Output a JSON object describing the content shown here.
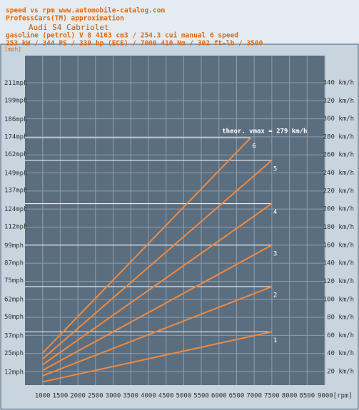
{
  "chart_data": {
    "type": "line",
    "header": [
      "speed vs rpm www.automobile-catalog.com",
      "ProfessCars(TM) approximation"
    ],
    "title": "Audi S4 Cabriolet",
    "subtitle": [
      "gasoline (petrol) V 8 4163 cm3 / 254.3 cui manual 6 speed",
      "253 kW / 344 PS / 339 hp  (ECE) / 7000 410 Nm / 302 ft-lb / 3500"
    ],
    "y_label": "[mph]",
    "annotation": "theor. vmax = 279 km/h",
    "xlim": [
      500,
      9000
    ],
    "xticks": [
      1000,
      1500,
      2000,
      2500,
      3000,
      3500,
      4000,
      4500,
      5000,
      5500,
      6000,
      6500,
      7000,
      7500,
      8000,
      8500,
      {
        "value": 9000,
        "label": "9000[rpm]"
      }
    ],
    "ylim": [
      3.1,
      229.9
    ],
    "yticks": [
      {
        "value": 12,
        "label": "12mph"
      },
      {
        "value": 25,
        "label": "25mph"
      },
      {
        "value": 37,
        "label": "37mph"
      },
      {
        "value": 50,
        "label": "50mph"
      },
      {
        "value": 62,
        "label": "62mph"
      },
      {
        "value": 75,
        "label": "75mph"
      },
      {
        "value": 87,
        "label": "87mph"
      },
      {
        "value": 99,
        "label": "99mph"
      },
      {
        "value": 112,
        "label": "112mph"
      },
      {
        "value": 124,
        "label": "124mph"
      },
      {
        "value": 137,
        "label": "137mph"
      },
      {
        "value": 149,
        "label": "149mph"
      },
      {
        "value": 162,
        "label": "162mph"
      },
      {
        "value": 174,
        "label": "174mph"
      },
      {
        "value": 186,
        "label": "186mph"
      },
      {
        "value": 199,
        "label": "199mph"
      },
      {
        "value": 211,
        "label": "211mph"
      }
    ],
    "y2lim": [
      5,
      370
    ],
    "y2ticks": [
      {
        "value": 20,
        "label": "20 km/h"
      },
      {
        "value": 40,
        "label": "40 km/h"
      },
      {
        "value": 60,
        "label": "60 km/h"
      },
      {
        "value": 80,
        "label": "80 km/h"
      },
      {
        "value": 100,
        "label": "100 km/h"
      },
      {
        "value": 120,
        "label": "120 km/h"
      },
      {
        "value": 140,
        "label": "140 km/h"
      },
      {
        "value": 160,
        "label": "160 km/h"
      },
      {
        "value": 180,
        "label": "180 km/h"
      },
      {
        "value": 200,
        "label": "200 km/h"
      },
      {
        "value": 220,
        "label": "220 km/h"
      },
      {
        "value": 240,
        "label": "240 km/h"
      },
      {
        "value": 260,
        "label": "260 km/h"
      },
      {
        "value": 280,
        "label": "280 km/h"
      },
      {
        "value": 300,
        "label": "300 km/h"
      },
      {
        "value": 320,
        "label": "320 km/h"
      },
      {
        "value": 340,
        "label": "340 km/h"
      }
    ],
    "grid": true,
    "series": [
      {
        "name": "1",
        "color": "#f08a40",
        "axis": "y2",
        "x": [
          1000,
          7500
        ],
        "values": [
          8.5,
          64
        ]
      },
      {
        "name": "2",
        "color": "#f08a40",
        "axis": "y2",
        "x": [
          1000,
          7500
        ],
        "values": [
          15.2,
          114
        ]
      },
      {
        "name": "3",
        "color": "#f08a40",
        "axis": "y2",
        "x": [
          1000,
          7500
        ],
        "values": [
          21.3,
          160
        ]
      },
      {
        "name": "4",
        "color": "#f08a40",
        "axis": "y2",
        "x": [
          1000,
          7500
        ],
        "values": [
          27.5,
          206
        ]
      },
      {
        "name": "5",
        "color": "#f08a40",
        "axis": "y2",
        "x": [
          1000,
          7500
        ],
        "values": [
          33.9,
          254
        ]
      },
      {
        "name": "6",
        "color": "#f08a40",
        "axis": "y2",
        "x": [
          1000,
          6900
        ],
        "values": [
          40.5,
          279
        ]
      }
    ]
  }
}
